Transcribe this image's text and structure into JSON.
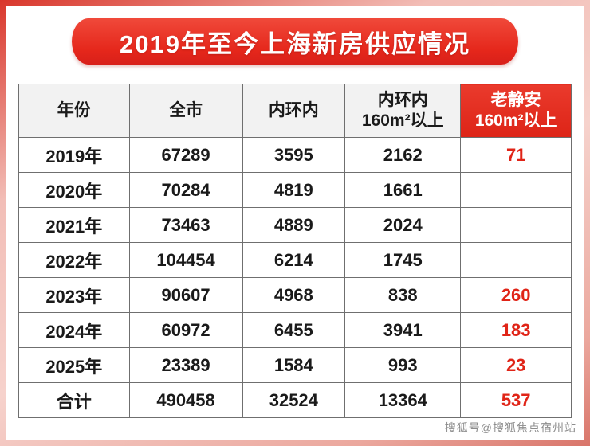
{
  "title": "2019年至今上海新房供应情况",
  "watermark": "搜狐号@搜狐焦点宿州站",
  "colors": {
    "accent_red": "#e02417",
    "ribbon_red": "#e5271b",
    "header_gray": "#f2f2f2",
    "border_gray": "#6f6f6f"
  },
  "chart_data": {
    "type": "table",
    "title": "2019年至今上海新房供应情况",
    "columns": [
      "年份",
      "全市",
      "内环内",
      "内环内\n160m²以上",
      "老静安\n160m²以上"
    ],
    "highlight_column": 4,
    "rows": [
      [
        "2019年",
        "67289",
        "3595",
        "2162",
        "71"
      ],
      [
        "2020年",
        "70284",
        "4819",
        "1661",
        ""
      ],
      [
        "2021年",
        "73463",
        "4889",
        "2024",
        ""
      ],
      [
        "2022年",
        "104454",
        "6214",
        "1745",
        ""
      ],
      [
        "2023年",
        "90607",
        "4968",
        "838",
        "260"
      ],
      [
        "2024年",
        "60972",
        "6455",
        "3941",
        "183"
      ],
      [
        "2025年",
        "23389",
        "1584",
        "993",
        "23"
      ],
      [
        "合计",
        "490458",
        "32524",
        "13364",
        "537"
      ]
    ]
  }
}
